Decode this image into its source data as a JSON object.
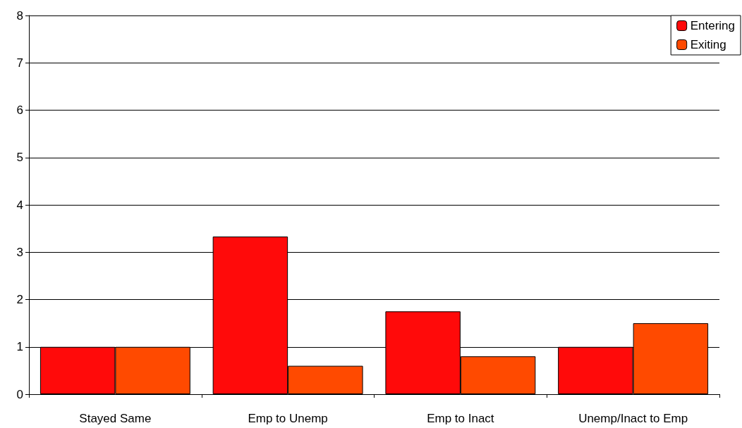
{
  "chart_data": {
    "type": "bar",
    "categories": [
      "Stayed Same",
      "Emp to Unemp",
      "Emp to Inact",
      "Unemp/Inact to Emp"
    ],
    "series": [
      {
        "name": "Entering",
        "color": "#ff0a0a",
        "values": [
          1,
          3.33,
          1.75,
          1
        ]
      },
      {
        "name": "Exiting",
        "color": "#ff4a00",
        "values": [
          1,
          0.6,
          0.8,
          1.5
        ]
      }
    ],
    "ylim": [
      0,
      8
    ],
    "yticks": [
      0,
      1,
      2,
      3,
      4,
      5,
      6,
      7,
      8
    ],
    "grid": "y",
    "legend": "top right"
  }
}
